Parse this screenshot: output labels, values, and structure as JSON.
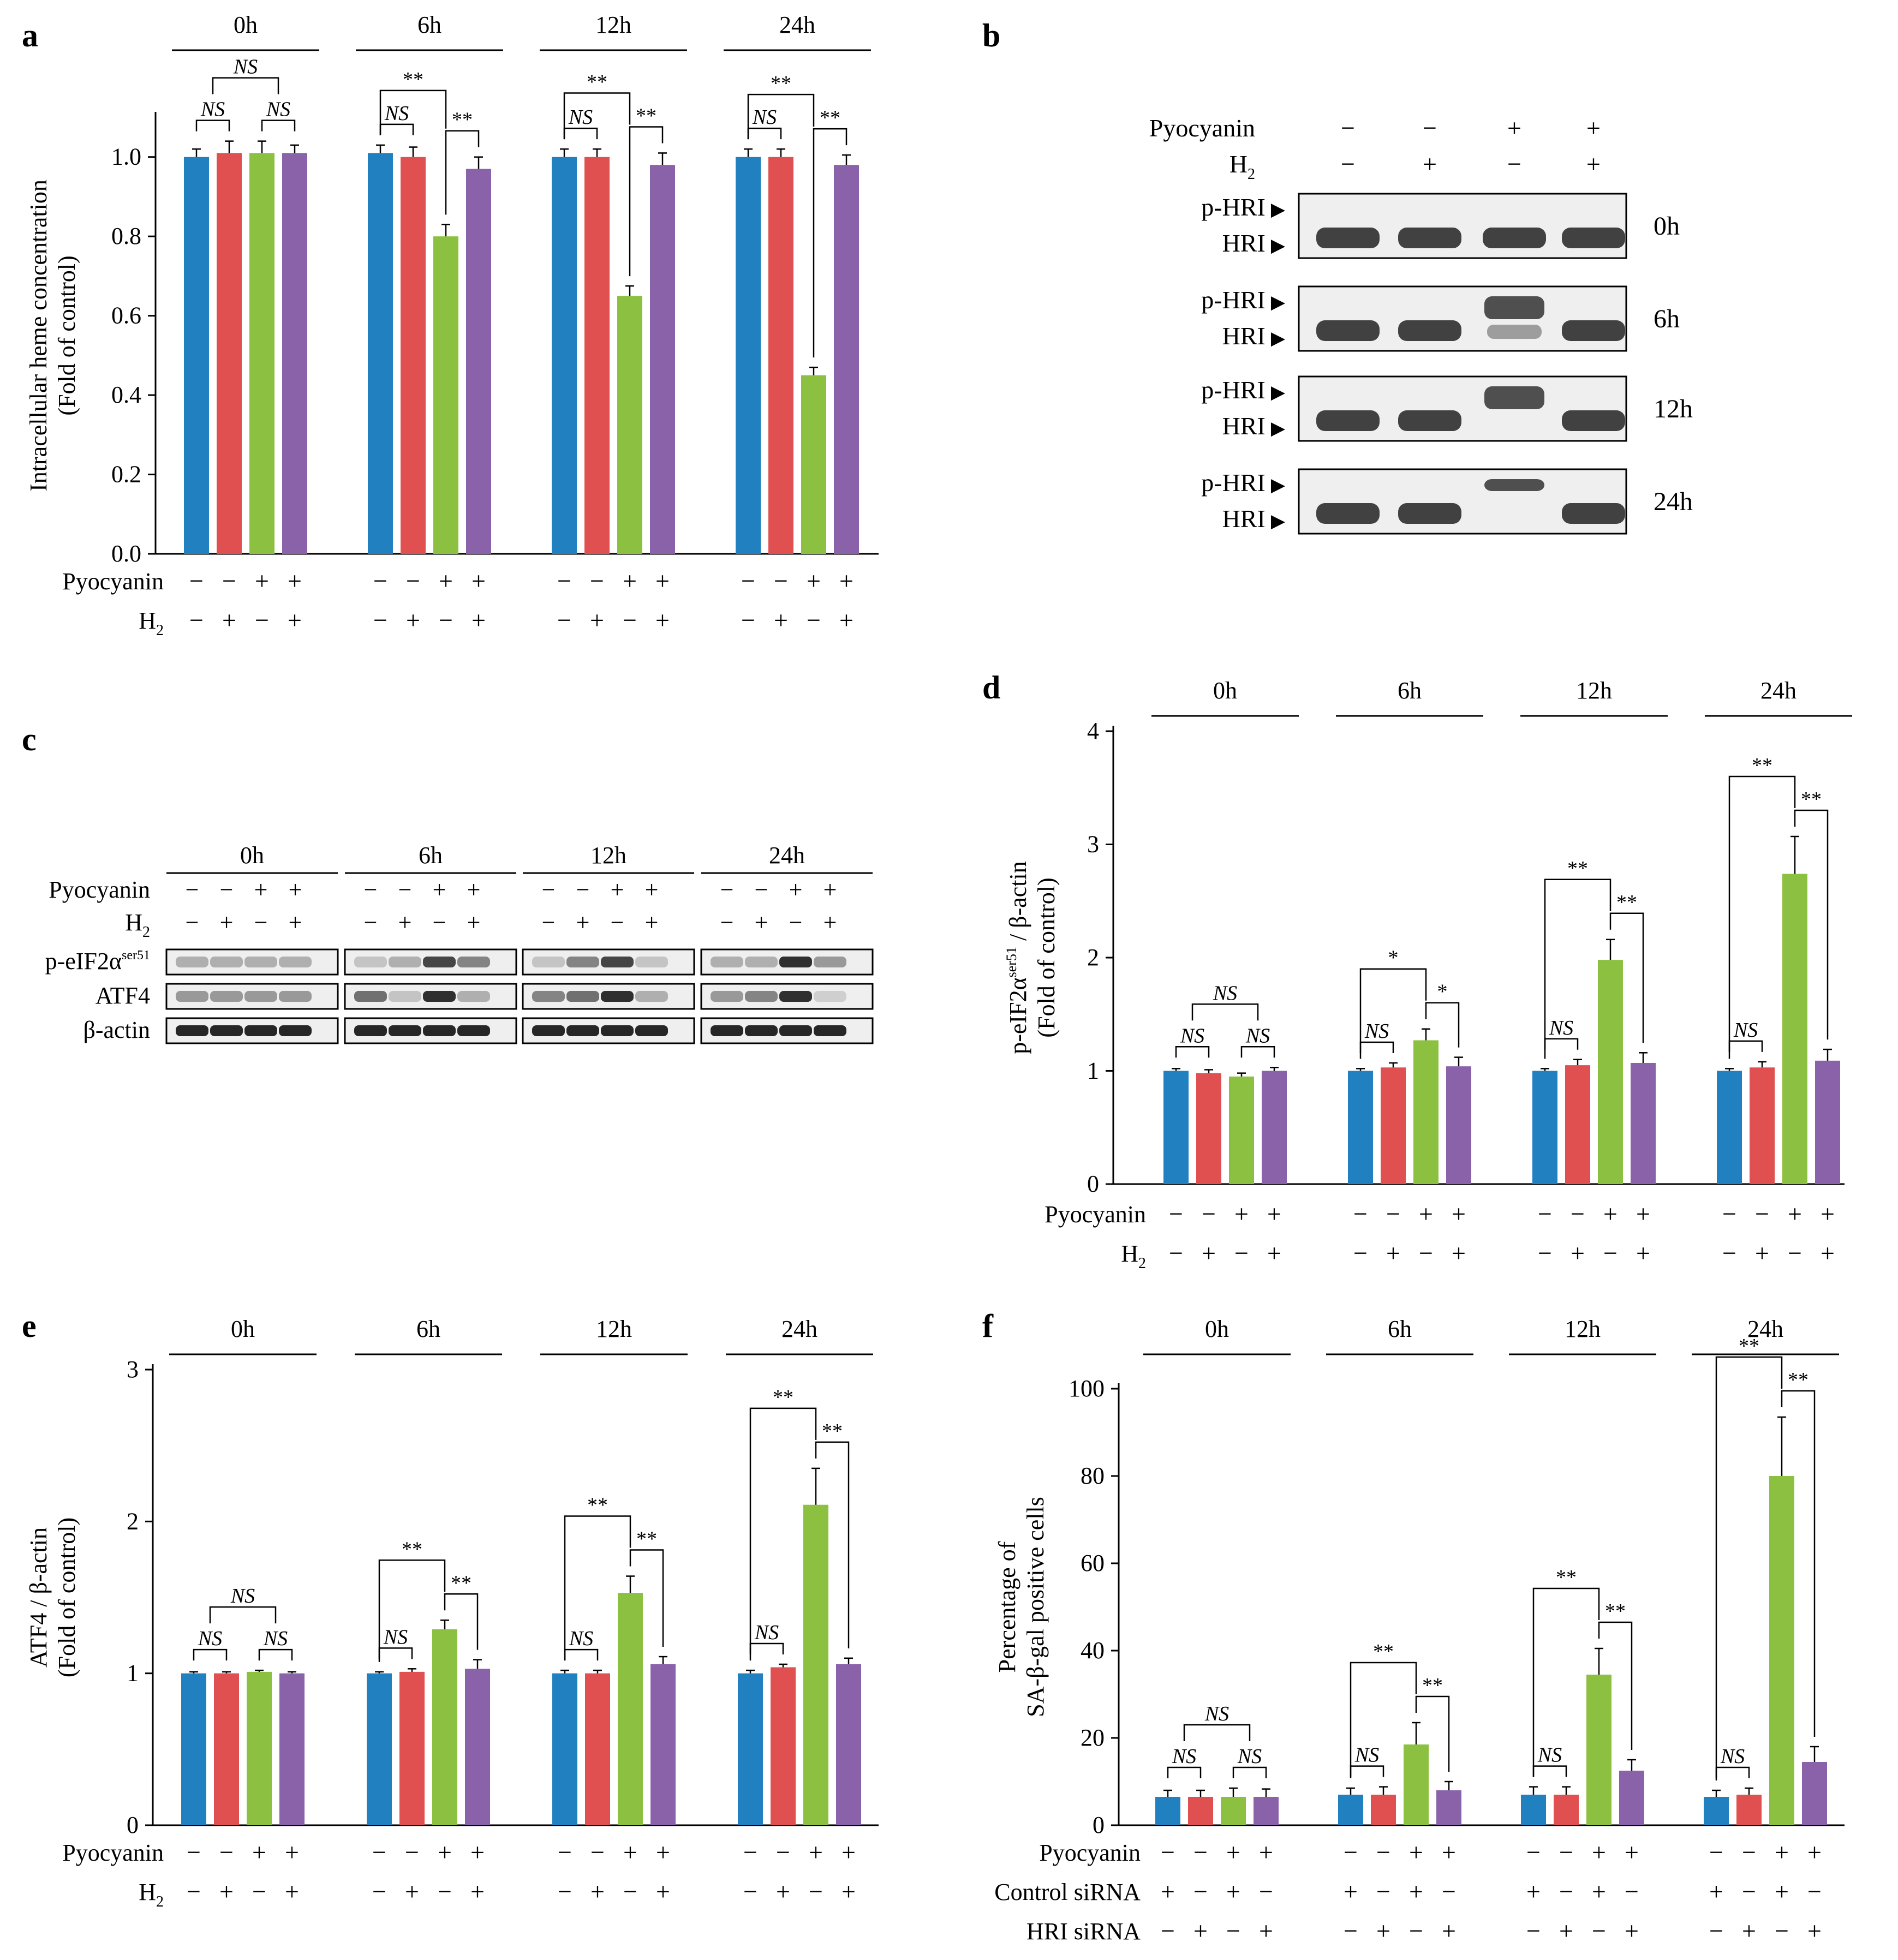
{
  "figure": {
    "panel_letters": [
      "a",
      "b",
      "c",
      "d",
      "e",
      "f"
    ],
    "colors": {
      "blue": "#2080c0",
      "red": "#e05050",
      "green": "#8cc040",
      "purple": "#8a62aa",
      "axis": "#000000",
      "bracket": "#000000",
      "blot_bg": "#efefef",
      "band": "#222222"
    },
    "time_points": [
      "0h",
      "6h",
      "12h",
      "24h"
    ]
  },
  "chart_data": [
    {
      "panel": "a",
      "type": "bar",
      "ylabel": [
        "Intracellular heme concentration",
        "(Fold of control)"
      ],
      "ylim": [
        0,
        1.1
      ],
      "yticks": [
        0.0,
        0.2,
        0.4,
        0.6,
        0.8,
        1.0
      ],
      "ytick_labels": [
        "0.0",
        "0.2",
        "0.4",
        "0.6",
        "0.8",
        "1.0"
      ],
      "groups": [
        "0h",
        "6h",
        "12h",
        "24h"
      ],
      "series": [
        {
          "name": "Pyocyanin − / H2 −",
          "color": "blue",
          "values": [
            1.0,
            1.01,
            1.0,
            1.0
          ],
          "errors": [
            0.02,
            0.02,
            0.02,
            0.02
          ]
        },
        {
          "name": "Pyocyanin − / H2 +",
          "color": "red",
          "values": [
            1.01,
            1.0,
            1.0,
            1.0
          ],
          "errors": [
            0.03,
            0.025,
            0.02,
            0.02
          ]
        },
        {
          "name": "Pyocyanin + / H2 −",
          "color": "green",
          "values": [
            1.01,
            0.8,
            0.65,
            0.45
          ],
          "errors": [
            0.03,
            0.03,
            0.025,
            0.02
          ]
        },
        {
          "name": "Pyocyanin + / H2 +",
          "color": "purple",
          "values": [
            1.01,
            0.97,
            0.98,
            0.98
          ],
          "errors": [
            0.02,
            0.03,
            0.03,
            0.025
          ]
        }
      ],
      "significance": [
        [
          "NS",
          "NS",
          "NS"
        ],
        [
          "NS",
          "**",
          "**"
        ],
        [
          "NS",
          "**",
          "**"
        ],
        [
          "NS",
          "**",
          "**"
        ]
      ],
      "condition_rows": [
        {
          "label": "Pyocyanin",
          "sub": "",
          "signs": [
            "−",
            "−",
            "+",
            "+"
          ]
        },
        {
          "label": "H",
          "sub": "2",
          "signs": [
            "−",
            "+",
            "−",
            "+"
          ]
        }
      ]
    },
    {
      "panel": "d",
      "type": "bar",
      "ylabel": [
        "p-eIF2α",
        "ser51",
        " / β-actin",
        "(Fold of control)"
      ],
      "ylim": [
        0,
        4
      ],
      "yticks": [
        0,
        1,
        2,
        3,
        4
      ],
      "ytick_labels": [
        "0",
        "1",
        "2",
        "3",
        "4"
      ],
      "groups": [
        "0h",
        "6h",
        "12h",
        "24h"
      ],
      "series": [
        {
          "name": "Pyocyanin − / H2 −",
          "color": "blue",
          "values": [
            1.0,
            1.0,
            1.0,
            1.0
          ],
          "errors": [
            0.02,
            0.02,
            0.02,
            0.02
          ]
        },
        {
          "name": "Pyocyanin − / H2 +",
          "color": "red",
          "values": [
            0.98,
            1.03,
            1.05,
            1.03
          ],
          "errors": [
            0.03,
            0.04,
            0.05,
            0.05
          ]
        },
        {
          "name": "Pyocyanin + / H2 −",
          "color": "green",
          "values": [
            0.95,
            1.27,
            1.98,
            2.74
          ],
          "errors": [
            0.03,
            0.1,
            0.18,
            0.33
          ]
        },
        {
          "name": "Pyocyanin + / H2 +",
          "color": "purple",
          "values": [
            1.0,
            1.04,
            1.07,
            1.09
          ],
          "errors": [
            0.03,
            0.08,
            0.09,
            0.1
          ]
        }
      ],
      "significance": [
        [
          "NS",
          "NS",
          "NS"
        ],
        [
          "NS",
          "*",
          "*"
        ],
        [
          "NS",
          "**",
          "**"
        ],
        [
          "NS",
          "**",
          "**"
        ]
      ],
      "condition_rows": [
        {
          "label": "Pyocyanin",
          "sub": "",
          "signs": [
            "−",
            "−",
            "+",
            "+"
          ]
        },
        {
          "label": "H",
          "sub": "2",
          "signs": [
            "−",
            "+",
            "−",
            "+"
          ]
        }
      ]
    },
    {
      "panel": "e",
      "type": "bar",
      "ylabel": [
        "ATF4 / β-actin",
        "(Fold of control)"
      ],
      "ylim": [
        0,
        3
      ],
      "yticks": [
        0,
        1,
        2,
        3
      ],
      "ytick_labels": [
        "0",
        "1",
        "2",
        "3"
      ],
      "groups": [
        "0h",
        "6h",
        "12h",
        "24h"
      ],
      "series": [
        {
          "name": "Pyocyanin − / H2 −",
          "color": "blue",
          "values": [
            1.0,
            1.0,
            1.0,
            1.0
          ],
          "errors": [
            0.01,
            0.01,
            0.02,
            0.02
          ]
        },
        {
          "name": "Pyocyanin − / H2 +",
          "color": "red",
          "values": [
            1.0,
            1.01,
            1.0,
            1.04
          ],
          "errors": [
            0.01,
            0.02,
            0.02,
            0.02
          ]
        },
        {
          "name": "Pyocyanin + / H2 −",
          "color": "green",
          "values": [
            1.01,
            1.29,
            1.53,
            2.11
          ],
          "errors": [
            0.01,
            0.06,
            0.11,
            0.24
          ]
        },
        {
          "name": "Pyocyanin + / H2 +",
          "color": "purple",
          "values": [
            1.0,
            1.03,
            1.06,
            1.06
          ],
          "errors": [
            0.01,
            0.06,
            0.05,
            0.04
          ]
        }
      ],
      "significance": [
        [
          "NS",
          "NS",
          "NS"
        ],
        [
          "NS",
          "**",
          "**"
        ],
        [
          "NS",
          "**",
          "**"
        ],
        [
          "NS",
          "**",
          "**"
        ]
      ],
      "condition_rows": [
        {
          "label": "Pyocyanin",
          "sub": "",
          "signs": [
            "−",
            "−",
            "+",
            "+"
          ]
        },
        {
          "label": "H",
          "sub": "2",
          "signs": [
            "−",
            "+",
            "−",
            "+"
          ]
        }
      ]
    },
    {
      "panel": "f",
      "type": "bar",
      "ylabel": [
        "Percentage of",
        "SA-β-gal positive cells"
      ],
      "ylim": [
        0,
        100
      ],
      "yticks": [
        0,
        20,
        40,
        60,
        80,
        100
      ],
      "ytick_labels": [
        "0",
        "20",
        "40",
        "60",
        "80",
        "100"
      ],
      "groups": [
        "0h",
        "6h",
        "12h",
        "24h"
      ],
      "series": [
        {
          "name": "Pyocyanin − / Control siRNA +",
          "color": "blue",
          "values": [
            6.5,
            7.0,
            7.0,
            6.5
          ],
          "errors": [
            1.5,
            1.5,
            1.8,
            1.5
          ]
        },
        {
          "name": "Pyocyanin − / HRI siRNA +",
          "color": "red",
          "values": [
            6.5,
            7.0,
            7.0,
            7.0
          ],
          "errors": [
            1.5,
            1.8,
            1.8,
            1.5
          ]
        },
        {
          "name": "Pyocyanin + / Control siRNA +",
          "color": "green",
          "values": [
            6.5,
            18.5,
            34.5,
            80.0
          ],
          "errors": [
            2.0,
            5.0,
            6.0,
            13.5
          ]
        },
        {
          "name": "Pyocyanin + / HRI siRNA +",
          "color": "purple",
          "values": [
            6.5,
            8.0,
            12.5,
            14.5
          ],
          "errors": [
            1.8,
            2.0,
            2.5,
            3.5
          ]
        }
      ],
      "significance": [
        [
          "NS",
          "NS",
          "NS"
        ],
        [
          "NS",
          "**",
          "**"
        ],
        [
          "NS",
          "**",
          "**"
        ],
        [
          "NS",
          "**",
          "**"
        ]
      ],
      "condition_rows": [
        {
          "label": "Pyocyanin",
          "sub": "",
          "signs": [
            "−",
            "−",
            "+",
            "+"
          ]
        },
        {
          "label": "Control siRNA",
          "sub": "",
          "signs": [
            "+",
            "−",
            "+",
            "−"
          ]
        },
        {
          "label": "HRI siRNA",
          "sub": "",
          "signs": [
            "−",
            "+",
            "−",
            "+"
          ]
        }
      ]
    }
  ],
  "blot_b": {
    "condition_rows": [
      {
        "label": "Pyocyanin",
        "sub": "",
        "signs": [
          "−",
          "−",
          "+",
          "+"
        ]
      },
      {
        "label": "H",
        "sub": "2",
        "signs": [
          "−",
          "+",
          "−",
          "+"
        ]
      }
    ],
    "band_labels": [
      "p-HRI ▸",
      "HRI ▸"
    ],
    "band_labels_alt": {
      "p": "p-HRI",
      "t": "HRI",
      "arrow": "▶"
    },
    "time_points": [
      "0h",
      "6h",
      "12h",
      "24h"
    ]
  },
  "blot_c": {
    "condition_rows": [
      {
        "label": "Pyocyanin",
        "sub": "",
        "signs": [
          "−",
          "−",
          "+",
          "+"
        ]
      },
      {
        "label": "H",
        "sub": "2",
        "signs": [
          "−",
          "+",
          "−",
          "+"
        ]
      }
    ],
    "rows": [
      {
        "label": "p-eIF2α",
        "sup": "ser51"
      },
      {
        "label": "ATF4",
        "sup": ""
      },
      {
        "label": "β-actin",
        "sup": ""
      }
    ],
    "time_points": [
      "0h",
      "6h",
      "12h",
      "24h"
    ]
  }
}
